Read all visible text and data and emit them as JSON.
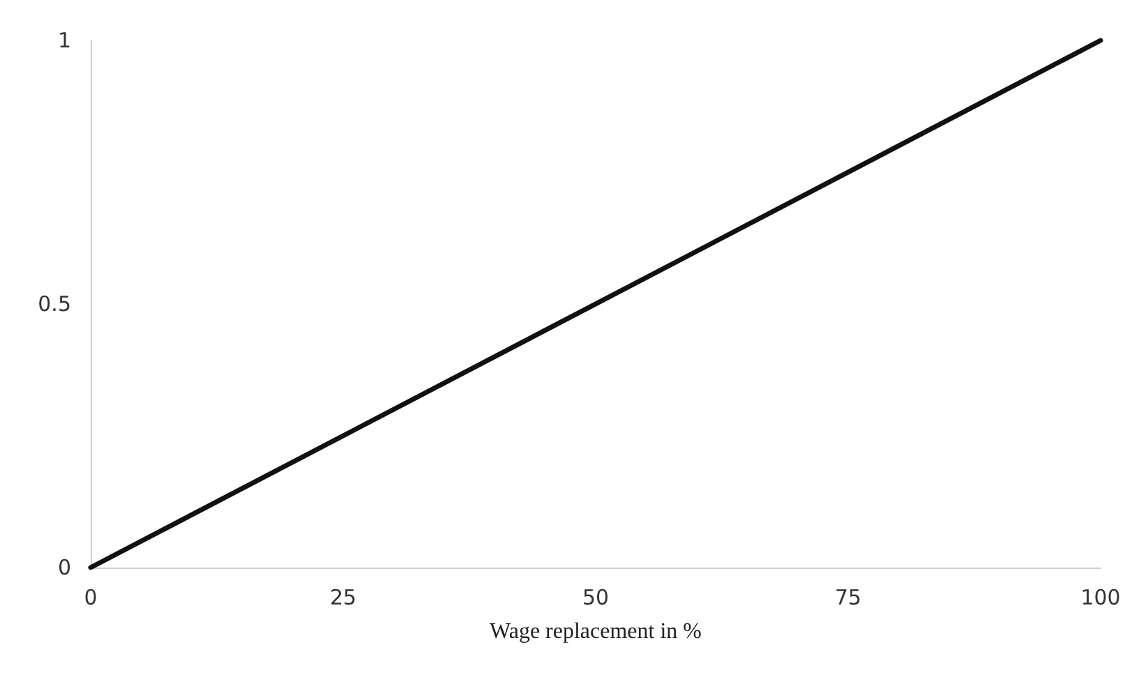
{
  "chart_data": {
    "type": "line",
    "xlabel": "Wage replacement in %",
    "x": [
      0,
      100
    ],
    "series": [
      {
        "color": "#111111",
        "values": [
          0,
          1
        ]
      }
    ],
    "xlim": [
      0,
      100
    ],
    "xticks": [
      0,
      25,
      50,
      75,
      100
    ],
    "ylim": [
      0,
      1
    ],
    "yticks": [
      0,
      0.5,
      1
    ],
    "grid": false,
    "marker": "none",
    "line_style": "solid"
  }
}
